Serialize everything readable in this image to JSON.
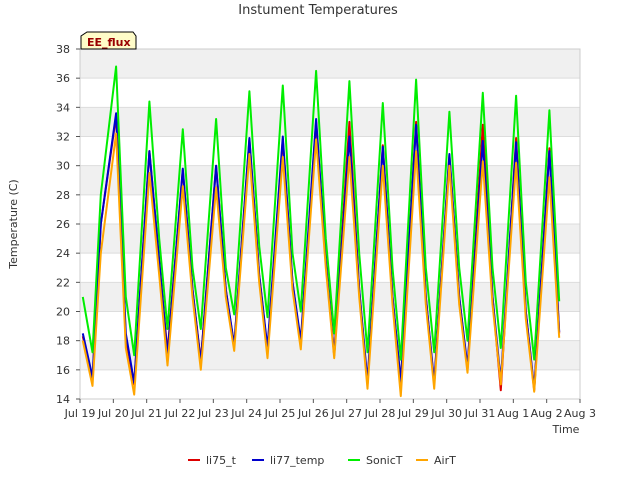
{
  "chart_data": {
    "type": "line",
    "title": "Instument Temperatures",
    "xlabel": "Time",
    "ylabel": "Temperature (C)",
    "site_badge": "EE_flux",
    "x_tick_labels": [
      "Jul 19",
      "Jul 20",
      "Jul 21",
      "Jul 22",
      "Jul 23",
      "Jul 24",
      "Jul 25",
      "Jul 26",
      "Jul 27",
      "Jul 28",
      "Jul 29",
      "Jul 30",
      "Jul 31",
      "Aug 1",
      "Aug 2",
      "Aug 3"
    ],
    "xlim": [
      "2023-07-19",
      "2023-08-03"
    ],
    "ylim": [
      14,
      38
    ],
    "y_ticks": [
      14,
      16,
      18,
      20,
      22,
      24,
      26,
      28,
      30,
      32,
      34,
      36,
      38
    ],
    "grid": true,
    "legend_position": "bottom",
    "x": [
      "Jul 19 02:00",
      "Jul 19 09:00",
      "Jul 19 15:00",
      "Jul 20 02:00",
      "Jul 20 09:00",
      "Jul 20 15:00",
      "Jul 21 02:00",
      "Jul 21 09:00",
      "Jul 21 15:00",
      "Jul 22 02:00",
      "Jul 22 09:00",
      "Jul 22 15:00",
      "Jul 23 02:00",
      "Jul 23 09:00",
      "Jul 23 15:00",
      "Jul 24 02:00",
      "Jul 24 09:00",
      "Jul 24 15:00",
      "Jul 25 02:00",
      "Jul 25 09:00",
      "Jul 25 15:00",
      "Jul 26 02:00",
      "Jul 26 09:00",
      "Jul 26 15:00",
      "Jul 27 02:00",
      "Jul 27 09:00",
      "Jul 27 15:00",
      "Jul 28 02:00",
      "Jul 28 09:00",
      "Jul 28 15:00",
      "Jul 29 02:00",
      "Jul 29 09:00",
      "Jul 29 15:00",
      "Jul 30 02:00",
      "Jul 30 09:00",
      "Jul 30 15:00",
      "Jul 31 02:00",
      "Jul 31 09:00",
      "Jul 31 15:00",
      "Aug 1 02:00",
      "Aug 1 09:00",
      "Aug 1 15:00",
      "Aug 2 02:00",
      "Aug 2 09:00"
    ],
    "series": [
      {
        "name": "li75_t",
        "color": "#dd0000",
        "values": [
          18.3,
          15.3,
          26,
          33.4,
          18.2,
          15,
          31,
          23.5,
          17.2,
          29.7,
          21.5,
          16.6,
          30,
          21.5,
          17.6,
          31.8,
          22.5,
          17.3,
          31.8,
          22,
          17.8,
          33,
          23.5,
          17,
          33,
          21.5,
          15,
          31.4,
          21,
          15,
          33,
          21,
          15,
          30.7,
          21,
          16,
          32.8,
          21,
          14.6,
          31.9,
          20,
          14.6,
          31.2,
          18.5
        ]
      },
      {
        "name": "li77_temp",
        "color": "#0000cc",
        "values": [
          18.5,
          15.5,
          26,
          33.6,
          18.5,
          15.1,
          31,
          23.5,
          17,
          29.8,
          21.5,
          16.5,
          30,
          21.5,
          17.7,
          31.9,
          22.5,
          17.5,
          32,
          22,
          18,
          33.2,
          23.5,
          17,
          32,
          21.5,
          15.2,
          31.3,
          21,
          15.2,
          32.8,
          21,
          15.1,
          30.8,
          21,
          16.2,
          31.7,
          21,
          15.2,
          31.6,
          20,
          14.7,
          31,
          18.6
        ]
      },
      {
        "name": "SonicT",
        "color": "#00ee00",
        "values": [
          21,
          17.2,
          28,
          36.8,
          21,
          17,
          34.4,
          25,
          18.8,
          32.5,
          23,
          18.8,
          33.2,
          23,
          19.8,
          35.1,
          24.5,
          19.6,
          35.5,
          24,
          20,
          36.5,
          25,
          18.5,
          35.8,
          24,
          17.2,
          34.3,
          23,
          16.7,
          35.9,
          23,
          17.2,
          33.7,
          23,
          18,
          35,
          23,
          17.5,
          34.8,
          22,
          16.7,
          33.8,
          20.7
        ]
      },
      {
        "name": "AirT",
        "color": "#ffa500",
        "values": [
          18,
          14.9,
          24,
          32.2,
          17.5,
          14.3,
          29.5,
          22.5,
          16.3,
          28.6,
          21,
          16,
          28.5,
          21,
          17.3,
          30.8,
          22,
          16.8,
          30.6,
          21.5,
          17.4,
          31.8,
          23,
          16.8,
          30.6,
          21,
          14.7,
          30,
          20.5,
          14.2,
          31,
          20.5,
          14.7,
          30,
          20.5,
          15.8,
          30.3,
          20.5,
          15,
          30.2,
          19.5,
          14.5,
          29.2,
          18.2
        ]
      }
    ]
  }
}
